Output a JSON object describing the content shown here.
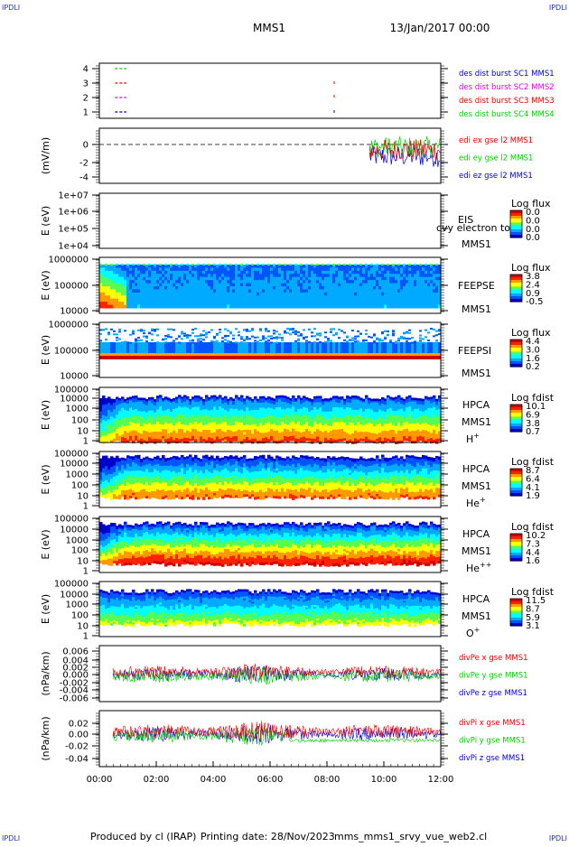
{
  "header": {
    "corner": "IPDLI",
    "spacecraft": "MMS1",
    "date_time": "13/Jan/2017 00:00"
  },
  "footer": {
    "produced_by": "Produced by cl (IRAP)",
    "printing_date": "Printing date: 28/Nov/2023",
    "filename": "mms_mms1_srvy_vue_web2.cl"
  },
  "time_axis": {
    "ticks": [
      "00:00",
      "02:00",
      "04:00",
      "06:00",
      "08:00",
      "10:00",
      "12:00"
    ],
    "range_hours": [
      0,
      12
    ]
  },
  "colors": {
    "red": "#e00000",
    "green": "#00cc00",
    "blue": "#0000cc",
    "magenta": "#dd00dd",
    "colorbar": [
      "#0000cc",
      "#0055ff",
      "#00aaff",
      "#00ffff",
      "#55ff55",
      "#ffff00",
      "#ff9900",
      "#ff2200",
      "#cc0000"
    ]
  },
  "chart_data": [
    {
      "type": "line",
      "id": "burst",
      "ylabel": "",
      "yticks": [
        "4",
        "3",
        "2",
        "1"
      ],
      "legend": [
        {
          "label": "des dist burst SC1 MMS1",
          "color": "#0000cc"
        },
        {
          "label": "des dist burst SC2 MMS2",
          "color": "#dd00dd"
        },
        {
          "label": "des dist burst SC3 MMS3",
          "color": "#e00000"
        },
        {
          "label": "des dist burst SC4 MMS4",
          "color": "#00cc00"
        }
      ],
      "series": [
        {
          "name": "SC4",
          "level": 4,
          "intervals_hours": [
            [
              0.55,
              0.95
            ]
          ],
          "color": "#00cc00"
        },
        {
          "name": "SC3",
          "level": 3,
          "intervals_hours": [
            [
              0.55,
              0.95
            ]
          ],
          "color": "#e00000"
        },
        {
          "name": "SC2",
          "level": 2,
          "intervals_hours": [
            [
              0.55,
              0.95
            ]
          ],
          "color": "#dd00dd"
        },
        {
          "name": "SC1",
          "level": 1,
          "intervals_hours": [
            [
              0.55,
              0.95
            ]
          ],
          "color": "#0000cc"
        }
      ]
    },
    {
      "type": "line",
      "id": "edi",
      "ylabel": "(mV/m)",
      "yticks": [
        "0",
        "-2",
        "-4"
      ],
      "legend": [
        {
          "label": "edi ex gse l2 MMS1",
          "color": "#e00000"
        },
        {
          "label": "edi ey gse l2 MMS1",
          "color": "#00cc00"
        },
        {
          "label": "edi ez gse l2 MMS1",
          "color": "#0000cc"
        }
      ],
      "data_start_hours": 9.5,
      "approx_levels": {
        "ex": -0.6,
        "ey": -0.3,
        "ez": -1.3
      }
    },
    {
      "type": "heatmap",
      "id": "eis",
      "ylabel": "E (eV)",
      "yticks": [
        "1e+07",
        "1e+06",
        "1e+05",
        "1e+04"
      ],
      "instrument": "EIS",
      "sc": "MMS1",
      "overlay": "cvy electron to",
      "colorbar_title": "Log flux",
      "colorbar_ticks": [
        "0.0",
        "0.0",
        "0.0",
        "0.0"
      ],
      "empty": true
    },
    {
      "type": "heatmap",
      "id": "feepse",
      "ylabel": "E (eV)",
      "yticks": [
        "1000000",
        "100000",
        "10000"
      ],
      "instrument": "FEEPSE",
      "sc": "MMS1",
      "colorbar_title": "Log flux",
      "colorbar_ticks": [
        "3.8",
        "2.4",
        "0.9",
        "-0.5"
      ]
    },
    {
      "type": "heatmap",
      "id": "feepsi",
      "ylabel": "E (eV)",
      "yticks": [
        "1000000",
        "100000",
        "10000"
      ],
      "instrument": "FEEPSI",
      "sc": "MMS1",
      "colorbar_title": "Log flux",
      "colorbar_ticks": [
        "4.4",
        "3.0",
        "1.6",
        "0.2"
      ]
    },
    {
      "type": "heatmap",
      "id": "hpca_h",
      "ylabel": "E (eV)",
      "yticks": [
        "100000",
        "10000",
        "1000",
        "100",
        "10",
        "1"
      ],
      "instrument": "HPCA",
      "sc": "MMS1",
      "species": "H",
      "charge": "+",
      "colorbar_title": "Log fdist",
      "colorbar_ticks": [
        "10.1",
        "6.9",
        "3.8",
        "0.7"
      ]
    },
    {
      "type": "heatmap",
      "id": "hpca_he",
      "ylabel": "E (eV)",
      "yticks": [
        "100000",
        "10000",
        "1000",
        "100",
        "10",
        "1"
      ],
      "instrument": "HPCA",
      "sc": "MMS1",
      "species": "He",
      "charge": "+",
      "colorbar_title": "Log fdist",
      "colorbar_ticks": [
        "8.7",
        "6.4",
        "4.1",
        "1.9"
      ]
    },
    {
      "type": "heatmap",
      "id": "hpca_hepp",
      "ylabel": "E (eV)",
      "yticks": [
        "100000",
        "10000",
        "1000",
        "100",
        "10",
        "1"
      ],
      "instrument": "HPCA",
      "sc": "MMS1",
      "species": "He",
      "charge": "++",
      "colorbar_title": "Log fdist",
      "colorbar_ticks": [
        "10.2",
        "7.3",
        "4.4",
        "1.6"
      ]
    },
    {
      "type": "heatmap",
      "id": "hpca_o",
      "ylabel": "E (eV)",
      "yticks": [
        "100000",
        "10000",
        "1000",
        "100",
        "10",
        "1"
      ],
      "instrument": "HPCA",
      "sc": "MMS1",
      "species": "O",
      "charge": "+",
      "colorbar_title": "Log fdist",
      "colorbar_ticks": [
        "11.5",
        "8.7",
        "5.9",
        "3.1"
      ]
    },
    {
      "type": "line",
      "id": "divpe",
      "ylabel": "(nPa/km)",
      "yticks": [
        "0.006",
        "0.004",
        "0.002",
        "0.000",
        "-0.002",
        "-0.004",
        "-0.006"
      ],
      "legend": [
        {
          "label": "divPe x gse MMS1",
          "color": "#e00000"
        },
        {
          "label": "divPe y gse MMS1",
          "color": "#00cc00"
        },
        {
          "label": "divPe z gse MMS1",
          "color": "#0000cc"
        }
      ]
    },
    {
      "type": "line",
      "id": "divpi",
      "ylabel": "(nPa/km)",
      "yticks": [
        "0.02",
        "0.00",
        "-0.02",
        "-0.04"
      ],
      "legend": [
        {
          "label": "divPi x gse MMS1",
          "color": "#e00000"
        },
        {
          "label": "divPi y gse MMS1",
          "color": "#00cc00"
        },
        {
          "label": "divPi z gse MMS1",
          "color": "#0000cc"
        }
      ]
    }
  ]
}
